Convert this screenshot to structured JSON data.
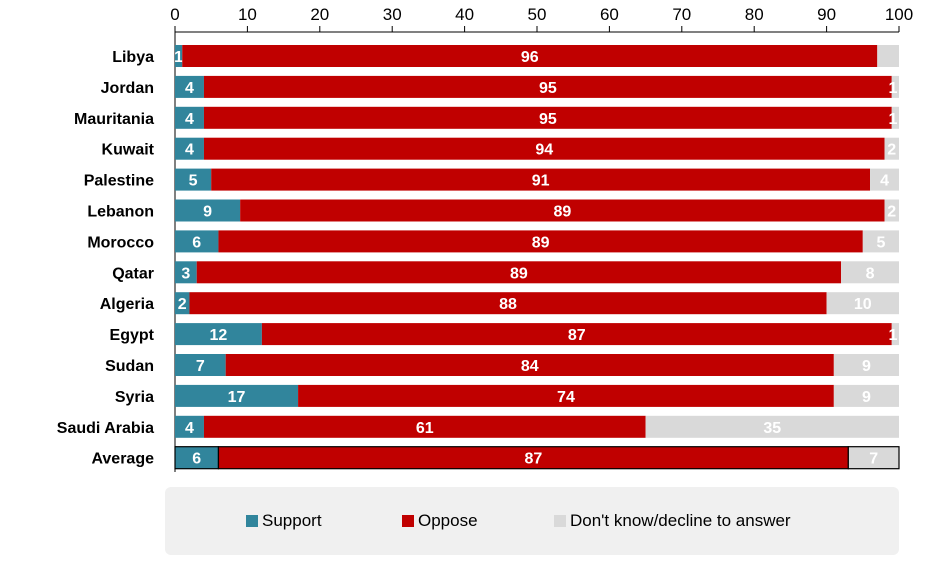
{
  "chart_data": {
    "type": "bar",
    "orientation": "horizontal",
    "stacked": true,
    "categories": [
      "Libya",
      "Jordan",
      "Mauritania",
      "Kuwait",
      "Palestine",
      "Lebanon",
      "Morocco",
      "Qatar",
      "Algeria",
      "Egypt",
      "Sudan",
      "Syria",
      "Saudi Arabia",
      "Average"
    ],
    "series": [
      {
        "name": "Support",
        "color": "#31859c",
        "values": [
          1,
          4,
          4,
          4,
          5,
          9,
          6,
          3,
          2,
          12,
          7,
          17,
          4,
          6
        ]
      },
      {
        "name": "Oppose",
        "color": "#c00000",
        "values": [
          96,
          95,
          95,
          94,
          91,
          89,
          89,
          89,
          88,
          87,
          84,
          74,
          61,
          87
        ]
      },
      {
        "name": "Don't know/decline to answer",
        "color": "#d9d9d9",
        "values": [
          3,
          1,
          1,
          2,
          4,
          2,
          5,
          8,
          10,
          1,
          9,
          9,
          35,
          7
        ]
      }
    ],
    "value_labels": [
      [
        "1",
        "96",
        ""
      ],
      [
        "4",
        "95",
        "1"
      ],
      [
        "4",
        "95",
        "1"
      ],
      [
        "4",
        "94",
        "2"
      ],
      [
        "5",
        "91",
        "4"
      ],
      [
        "9",
        "89",
        "2"
      ],
      [
        "6",
        "89",
        "5"
      ],
      [
        "3",
        "89",
        "8"
      ],
      [
        "2",
        "88",
        "10"
      ],
      [
        "12",
        "87",
        "1"
      ],
      [
        "7",
        "84",
        "9"
      ],
      [
        "17",
        "74",
        "9"
      ],
      [
        "4",
        "61",
        "35"
      ],
      [
        "6",
        "87",
        "7"
      ]
    ],
    "xlim": [
      0,
      100
    ],
    "xticks": [
      "0",
      "10",
      "20",
      "30",
      "40",
      "50",
      "60",
      "70",
      "80",
      "90",
      "100"
    ],
    "grid": false,
    "legend_position": "bottom",
    "title": "",
    "xlabel": "",
    "ylabel": ""
  },
  "legend": {
    "support": "Support",
    "oppose": "Oppose",
    "dont_know": "Don't know/decline to answer"
  }
}
